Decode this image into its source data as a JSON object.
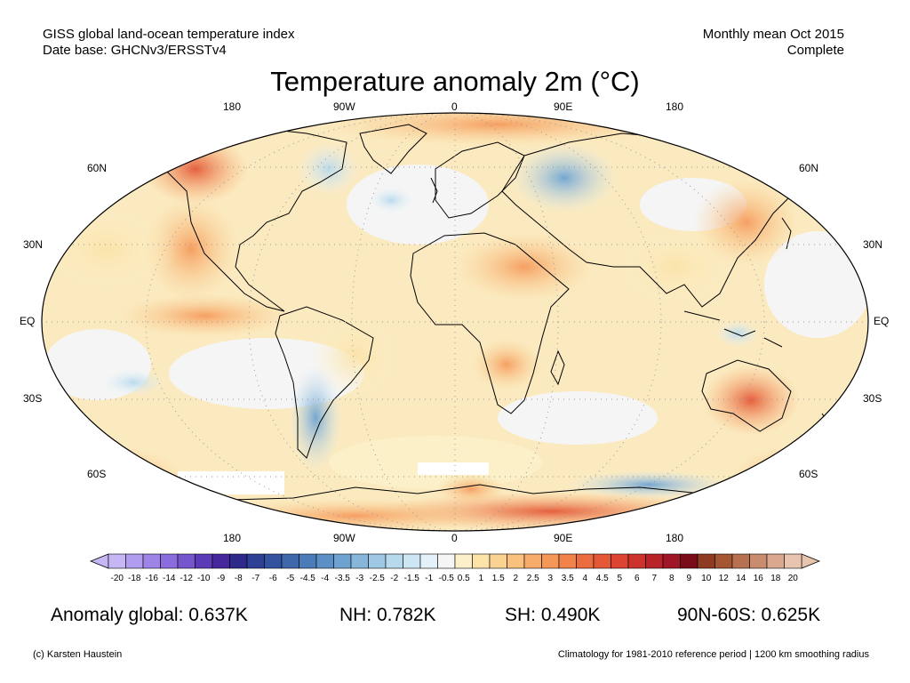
{
  "header": {
    "left_line1": "GISS global land-ocean temperature index",
    "left_line2": "Date base: GHCNv3/ERSSTv4",
    "right_line1": "Monthly mean Oct 2015",
    "right_line2": "Complete"
  },
  "title": "Temperature anomaly 2m (°C)",
  "map_axes": {
    "lon_labels": [
      "180",
      "90W",
      "0",
      "90E",
      "180"
    ],
    "lat_labels_left": [
      "60N",
      "30N",
      "EQ",
      "30S",
      "60S"
    ],
    "lat_labels_right": [
      "60N",
      "30N",
      "EQ",
      "30S",
      "60S"
    ]
  },
  "colorbar": {
    "labels": [
      "-20",
      "-18",
      "-16",
      "-14",
      "-12",
      "-10",
      "-9",
      "-8",
      "-7",
      "-6",
      "-5",
      "-4.5",
      "-4",
      "-3.5",
      "-3",
      "-2.5",
      "-2",
      "-1.5",
      "-1",
      "-0.5",
      "0.5",
      "1",
      "1.5",
      "2",
      "2.5",
      "3",
      "3.5",
      "4",
      "4.5",
      "5",
      "6",
      "7",
      "8",
      "9",
      "10",
      "12",
      "14",
      "16",
      "18",
      "20"
    ],
    "colors": [
      "#c6b6f6",
      "#b09df0",
      "#9d84e6",
      "#8a6cdc",
      "#7656cc",
      "#5c3cb6",
      "#46289c",
      "#2e2a8c",
      "#2e3f96",
      "#33539e",
      "#3f68ab",
      "#4b7cb9",
      "#5b8fc6",
      "#6ea3d1",
      "#86b6da",
      "#9ec8e3",
      "#b7d9ec",
      "#cee6f3",
      "#e4f1f8",
      "#f5f5f5",
      "#fbf0c8",
      "#fbe3a9",
      "#fad393",
      "#f9c07e",
      "#f7ab6a",
      "#f59758",
      "#f1824a",
      "#eb6c3f",
      "#e45838",
      "#dc4532",
      "#cc332c",
      "#b8232a",
      "#a01626",
      "#7a0c1a",
      "#8f3b22",
      "#a45633",
      "#b87150",
      "#c98c6e",
      "#d9a88e",
      "#e8c4ae"
    ]
  },
  "stats": {
    "global": "Anomaly global: 0.637K",
    "nh": "NH: 0.782K",
    "sh": "SH: 0.490K",
    "polar": "90N-60S: 0.625K"
  },
  "footer": {
    "credit": "(c) Karsten Haustein",
    "note": "Climatology for 1981-2010 reference period | 1200 km smoothing radius"
  }
}
